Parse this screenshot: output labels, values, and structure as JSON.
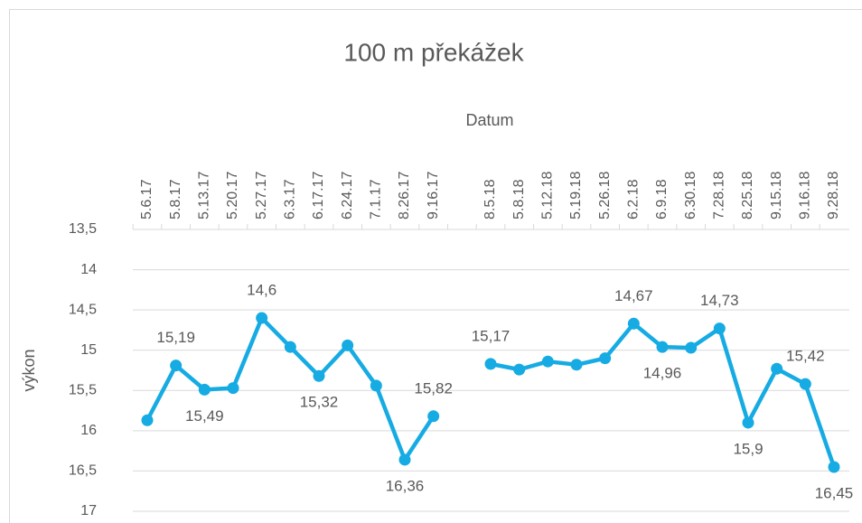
{
  "chart_data": {
    "type": "line",
    "title": "100 m překážek",
    "x_label": "Datum",
    "y_label": "výkon",
    "categories": [
      "5.6.17",
      "5.8.17",
      "5.13.17",
      "5.20.17",
      "5.27.17",
      "6.3.17",
      "6.17.17",
      "6.24.17",
      "7.1.17",
      "8.26.17",
      "9.16.17",
      null,
      "8.5.18",
      "5.8.18",
      "5.12.18",
      "5.19.18",
      "5.26.18",
      "6.2.18",
      "6.9.18",
      "6.30.18",
      "7.28.18",
      "8.25.18",
      "9.15.18",
      "9.16.18",
      "9.28.18"
    ],
    "series": [
      {
        "name": "výkon",
        "color": "#16abe3",
        "values": [
          15.87,
          15.19,
          15.49,
          15.47,
          14.6,
          14.96,
          15.32,
          14.94,
          15.44,
          16.36,
          15.82,
          null,
          15.17,
          15.24,
          15.14,
          15.18,
          15.1,
          14.67,
          14.96,
          14.97,
          14.73,
          15.9,
          15.23,
          15.42,
          16.45
        ],
        "value_labels": [
          null,
          "15,19",
          "15,49",
          null,
          "14,6",
          null,
          "15,32",
          null,
          null,
          "16,36",
          "15,82",
          null,
          "15,17",
          null,
          null,
          null,
          null,
          "14,67",
          "14,96",
          null,
          "14,73",
          "15,9",
          null,
          "15,42",
          "16,45"
        ]
      }
    ],
    "ylim": [
      13.5,
      17
    ],
    "y_inverted": true,
    "yticks": [
      {
        "value": 13.5,
        "label": "13,5"
      },
      14,
      {
        "value": 14.5,
        "label": "14,5"
      },
      15,
      {
        "value": 15.5,
        "label": "15,5"
      },
      16,
      {
        "value": 16.5,
        "label": "16,5"
      },
      17
    ],
    "grid": true
  }
}
